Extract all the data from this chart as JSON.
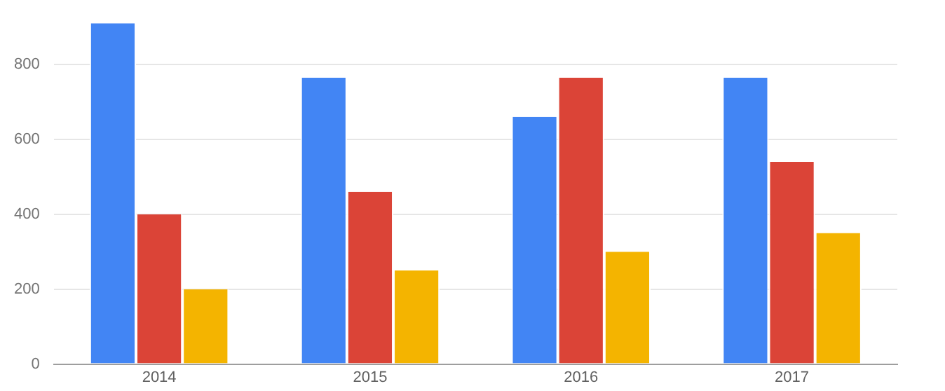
{
  "chart_data": {
    "type": "bar",
    "categories": [
      "2014",
      "2015",
      "2016",
      "2017"
    ],
    "series": [
      {
        "color": "#4285f4",
        "values": [
          910,
          765,
          660,
          765
        ]
      },
      {
        "color": "#db4437",
        "values": [
          400,
          460,
          765,
          540
        ]
      },
      {
        "color": "#f4b400",
        "values": [
          200,
          250,
          300,
          350
        ]
      }
    ],
    "ylim": [
      0,
      910
    ],
    "yticks": [
      0,
      200,
      400,
      600,
      800
    ],
    "grid": "y",
    "legend": false
  }
}
